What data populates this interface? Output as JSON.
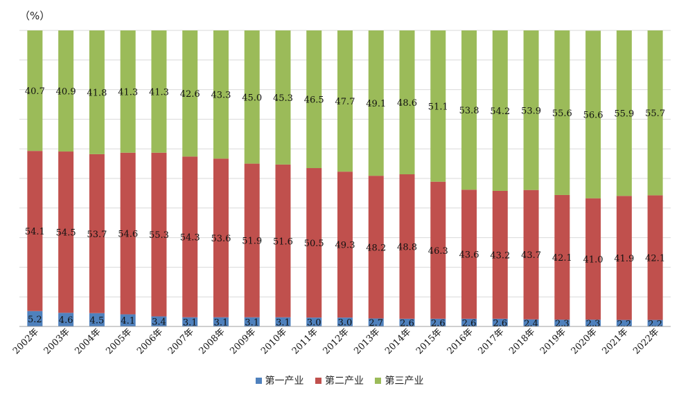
{
  "chart_data": {
    "type": "bar",
    "stacked": true,
    "unit_label": "（%）",
    "ylim": [
      0,
      100
    ],
    "grid": true,
    "legend_position": "bottom",
    "categories": [
      "2002年",
      "2003年",
      "2004年",
      "2005年",
      "2006年",
      "2007年",
      "2008年",
      "2009年",
      "2010年",
      "2011年",
      "2012年",
      "2013年",
      "2014年",
      "2015年",
      "2016年",
      "2017年",
      "2018年",
      "2019年",
      "2020年",
      "2021年",
      "2022年"
    ],
    "series": [
      {
        "name": "第一产业",
        "color": "#4f81bd",
        "values": [
          5.2,
          4.6,
          4.5,
          4.1,
          3.4,
          3.1,
          3.1,
          3.1,
          3.1,
          3.0,
          3.0,
          2.7,
          2.6,
          2.6,
          2.6,
          2.6,
          2.4,
          2.3,
          2.3,
          2.2,
          2.2
        ]
      },
      {
        "name": "第二产业",
        "color": "#c0504d",
        "values": [
          54.1,
          54.5,
          53.7,
          54.6,
          55.3,
          54.3,
          53.6,
          51.9,
          51.6,
          50.5,
          49.3,
          48.2,
          48.8,
          46.3,
          43.6,
          43.2,
          43.7,
          42.1,
          41.0,
          41.9,
          42.1
        ]
      },
      {
        "name": "第三产业",
        "color": "#9bbb59",
        "values": [
          40.7,
          40.9,
          41.8,
          41.3,
          41.3,
          42.6,
          43.3,
          45.0,
          45.3,
          46.5,
          47.7,
          49.1,
          48.6,
          51.1,
          53.8,
          54.2,
          53.9,
          55.6,
          56.6,
          55.9,
          55.7
        ]
      }
    ]
  }
}
